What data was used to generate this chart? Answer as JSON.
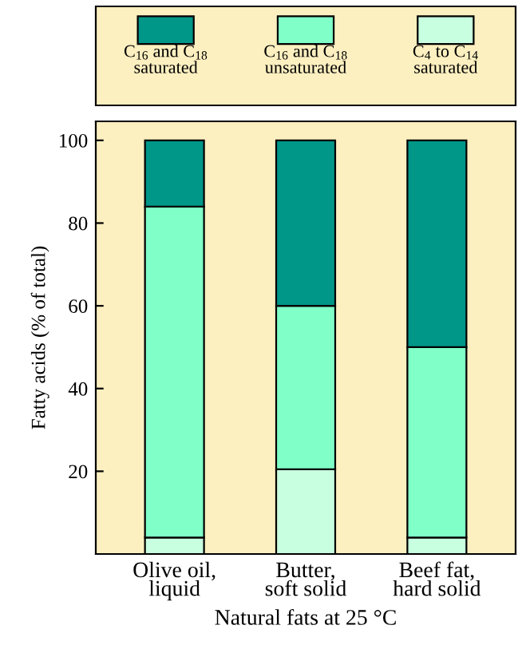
{
  "chart_data": {
    "type": "bar",
    "stacked": true,
    "xlabel": "Natural fats at 25 °C",
    "ylabel": "Fatty acids (% of total)",
    "categories": [
      "Olive oil,\nliquid",
      "Butter,\nsoft solid",
      "Beef fat,\nhard solid"
    ],
    "series": [
      {
        "name": "C$_{4}$ to C$_{14}$\nsaturated",
        "color": "#c8ffe0",
        "values": [
          4,
          20.5,
          4
        ]
      },
      {
        "name": "C$_{16}$ and C$_{18}$\nunsaturated",
        "color": "#80ffc8",
        "values": [
          80,
          39.5,
          46
        ]
      },
      {
        "name": "C$_{16}$ and C$_{18}$\nsaturated",
        "color": "#009688",
        "values": [
          16,
          40,
          50
        ]
      }
    ],
    "ylim": [
      0,
      104.6
    ],
    "yticks": [
      20,
      40,
      60,
      80,
      100
    ],
    "legend": "top",
    "grid": false
  }
}
